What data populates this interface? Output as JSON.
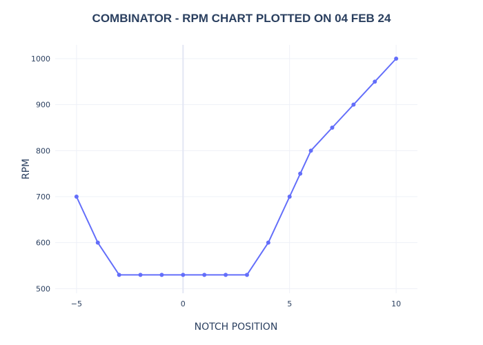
{
  "chart_data": {
    "type": "line",
    "title": "COMBINATOR  - RPM CHART PLOTTED ON 04 FEB 24",
    "xlabel": "NOTCH POSITION",
    "ylabel": "RPM",
    "xlim": [
      -6,
      11
    ],
    "ylim": [
      490,
      1030
    ],
    "x_ticks": [
      -5,
      0,
      5,
      10
    ],
    "x_tick_labels": [
      "−5",
      "0",
      "5",
      "10"
    ],
    "y_ticks": [
      500,
      600,
      700,
      800,
      900,
      1000
    ],
    "y_tick_labels": [
      "500",
      "600",
      "700",
      "800",
      "900",
      "1000"
    ],
    "grid": true,
    "zero_line": true,
    "series": [
      {
        "color": "#636efa",
        "x": [
          -5,
          -4,
          -3,
          -2,
          -1,
          0,
          1,
          2,
          3,
          4,
          5,
          5.5,
          6,
          7,
          8,
          9,
          10
        ],
        "y": [
          700,
          600,
          530,
          530,
          530,
          530,
          530,
          530,
          530,
          600,
          700,
          750,
          800,
          850,
          900,
          950,
          1000
        ]
      }
    ]
  }
}
